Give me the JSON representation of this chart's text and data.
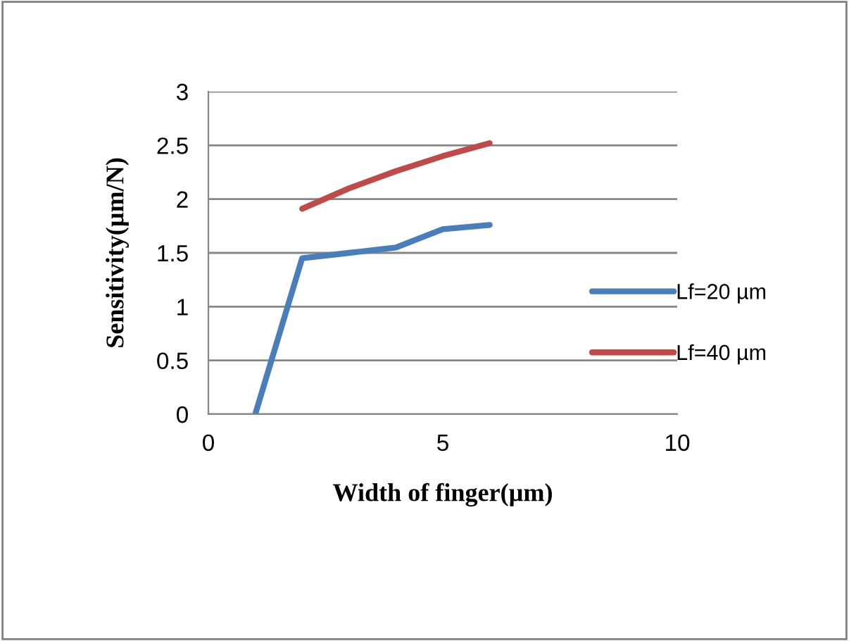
{
  "chart_data": {
    "type": "line",
    "xlabel": "Width of finger(µm)",
    "ylabel": "Sensitivity(µm/N)",
    "xlim": [
      0,
      10
    ],
    "xticks": [
      0,
      5,
      10
    ],
    "ylim": [
      0,
      3
    ],
    "yticks": [
      0,
      0.5,
      1,
      1.5,
      2,
      2.5,
      3
    ],
    "grid": "y",
    "legend": "right",
    "marker": "none",
    "line_style": "solid",
    "series": [
      {
        "name": "Lf=20 µm",
        "color": "#4a7ebb",
        "x": [
          1,
          2,
          3,
          4,
          5,
          6
        ],
        "values": [
          0,
          1.45,
          1.5,
          1.55,
          1.72,
          1.76
        ]
      },
      {
        "name": "Lf=40 µm",
        "color": "#be4b48",
        "x": [
          2,
          3,
          4,
          5,
          6
        ],
        "values": [
          1.91,
          2.1,
          2.26,
          2.4,
          2.52
        ]
      }
    ]
  }
}
